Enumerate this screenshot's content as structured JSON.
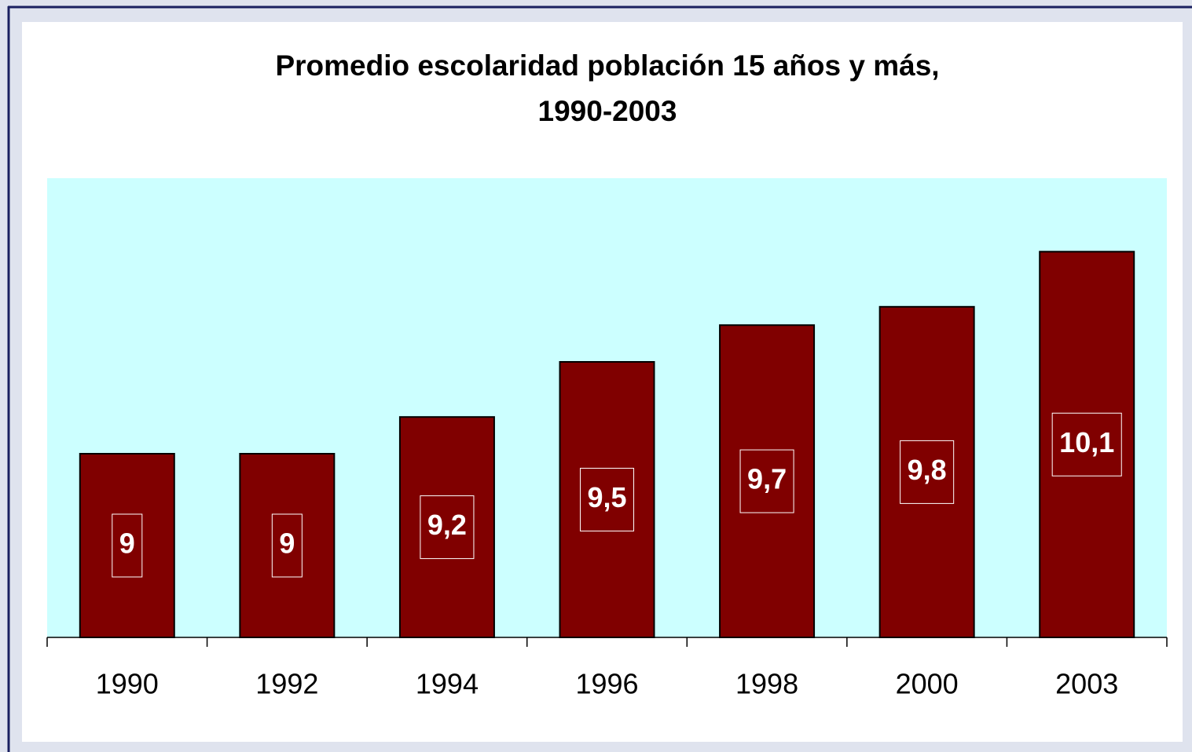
{
  "chart_data": {
    "type": "bar",
    "title": [
      "Promedio escolaridad población 15 años y más,",
      "1990-2003"
    ],
    "categories": [
      "1990",
      "1992",
      "1994",
      "1996",
      "1998",
      "2000",
      "2003"
    ],
    "values": [
      9,
      9,
      9.2,
      9.5,
      9.7,
      9.8,
      10.1
    ],
    "value_labels": [
      "9",
      "9",
      "9,2",
      "9,5",
      "9,7",
      "9,8",
      "10,1"
    ],
    "color": "#800000",
    "plot_background": "#ccffff",
    "ylim": [
      8,
      10.5
    ]
  }
}
